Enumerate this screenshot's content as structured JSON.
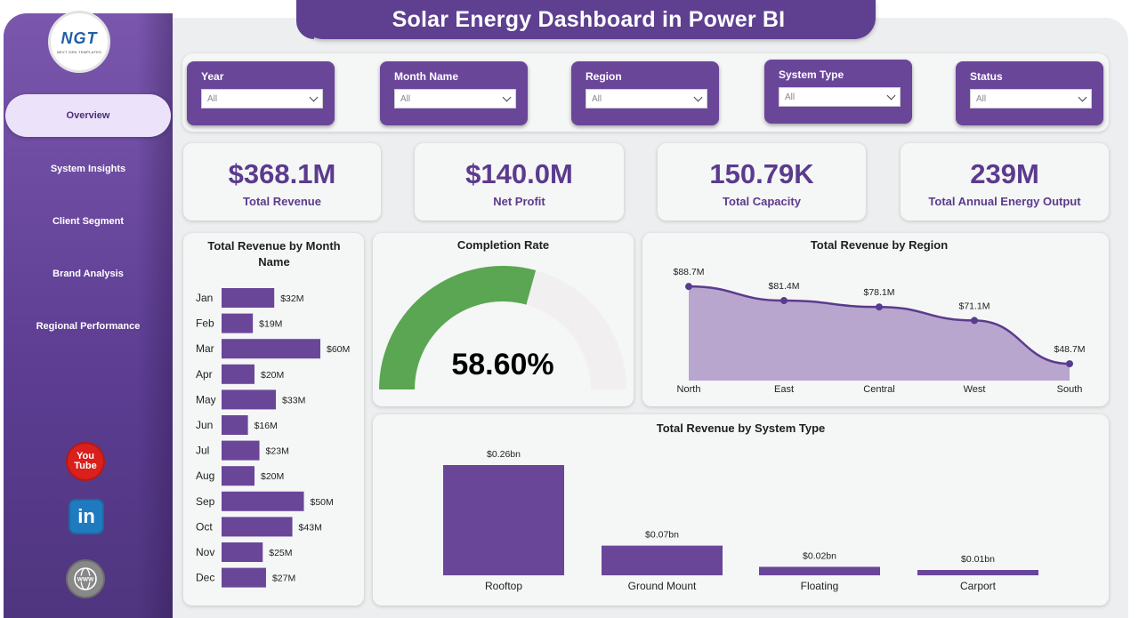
{
  "title": "Solar Energy Dashboard in Power BI",
  "logo": {
    "text": "NGT",
    "subtitle": "NEXT GEN TEMPLATES"
  },
  "nav": [
    {
      "label": "Overview",
      "active": true
    },
    {
      "label": "System Insights"
    },
    {
      "label": "Client Segment"
    },
    {
      "label": "Brand Analysis"
    },
    {
      "label": "Regional Performance"
    }
  ],
  "social": {
    "youtube_icon": "youtube-icon",
    "youtube_text": "You\nTube",
    "linkedin_icon": "linkedin-icon",
    "linkedin_text": "in",
    "web_icon": "globe-icon",
    "web_text": "WWW"
  },
  "filters": [
    {
      "label": "Year",
      "value": "All"
    },
    {
      "label": "Month Name",
      "value": "All"
    },
    {
      "label": "Region",
      "value": "All"
    },
    {
      "label": "System Type",
      "value": "All"
    },
    {
      "label": "Status",
      "value": "All"
    }
  ],
  "kpis": [
    {
      "value": "$368.1M",
      "label": "Total Revenue"
    },
    {
      "value": "$140.0M",
      "label": "Net Profit"
    },
    {
      "value": "150.79K",
      "label": "Total Capacity"
    },
    {
      "value": "239M",
      "label": "Total Annual Energy Output"
    }
  ],
  "colors": {
    "primary": "#5e3f90",
    "bar": "#6a4699",
    "gauge_fill": "#5aa653",
    "gauge_track": "#f1efef",
    "area_fill": "#b8a6cf",
    "line": "#5b3b8d"
  },
  "chart_data": [
    {
      "type": "bar",
      "orientation": "horizontal",
      "title": "Total Revenue by Month Name",
      "categories": [
        "Jan",
        "Feb",
        "Mar",
        "Apr",
        "May",
        "Jun",
        "Jul",
        "Aug",
        "Sep",
        "Oct",
        "Nov",
        "Dec"
      ],
      "values": [
        32,
        19,
        60,
        20,
        33,
        16,
        23,
        20,
        50,
        43,
        25,
        27
      ],
      "data_labels": [
        "$32M",
        "$19M",
        "$60M",
        "$20M",
        "$33M",
        "$16M",
        "$23M",
        "$20M",
        "$50M",
        "$43M",
        "$25M",
        "$27M"
      ]
    },
    {
      "type": "gauge",
      "title": "Completion Rate",
      "value": 58.6,
      "max": 100,
      "value_label": "58.60%"
    },
    {
      "type": "area",
      "title": "Total Revenue by Region",
      "categories": [
        "North",
        "East",
        "Central",
        "West",
        "South"
      ],
      "values": [
        88.7,
        81.4,
        78.1,
        71.1,
        48.7
      ],
      "data_labels": [
        "$88.7M",
        "$81.4M",
        "$78.1M",
        "$71.1M",
        "$48.7M"
      ]
    },
    {
      "type": "bar",
      "title": "Total Revenue by System Type",
      "categories": [
        "Rooftop",
        "Ground Mount",
        "Floating",
        "Carport"
      ],
      "values": [
        0.26,
        0.07,
        0.02,
        0.01
      ],
      "data_labels": [
        "$0.26bn",
        "$0.07bn",
        "$0.02bn",
        "$0.01bn"
      ]
    }
  ]
}
